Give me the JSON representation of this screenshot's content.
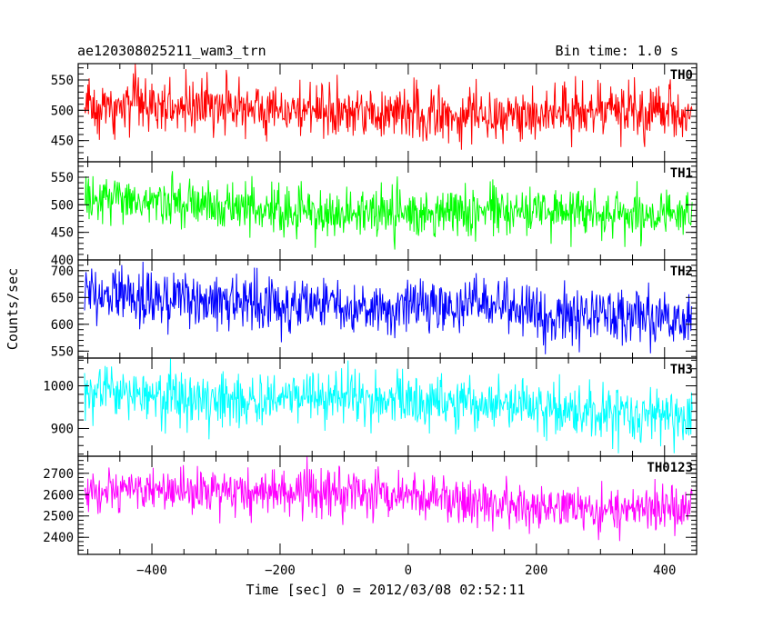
{
  "chart_data": {
    "type": "line",
    "title_left": "ae120308025211_wam3_trn",
    "title_right": "Bin time: 1.0 s",
    "xlabel": "Time [sec] 0 = 2012/03/08 02:52:11",
    "ylabel": "Counts/sec",
    "xlim": [
      -515,
      450
    ],
    "x_ticks": [
      -400,
      -200,
      0,
      200,
      400
    ],
    "x_start": -505,
    "x_end": 443,
    "x_step": 1.0,
    "grid": false,
    "panels": [
      {
        "name": "TH0",
        "color": "#ff0000",
        "ylim": [
          415,
          577
        ],
        "y_ticks": [
          450,
          500,
          550
        ],
        "mean_start": 505,
        "mean_end": 492,
        "noise": 22,
        "min": 435,
        "max": 577
      },
      {
        "name": "TH1",
        "color": "#00ff00",
        "ylim": [
          400,
          578
        ],
        "y_ticks": [
          400,
          450,
          500,
          550
        ],
        "mean_start": 500,
        "mean_end": 478,
        "noise": 22,
        "min": 405,
        "max": 575
      },
      {
        "name": "TH2",
        "color": "#0000ff",
        "ylim": [
          537,
          720
        ],
        "y_ticks": [
          550,
          600,
          650,
          700
        ],
        "mean_start": 655,
        "mean_end": 612,
        "noise": 25,
        "min": 540,
        "max": 720
      },
      {
        "name": "TH3",
        "color": "#00ffff",
        "ylim": [
          835,
          1065
        ],
        "y_ticks": [
          900,
          1000
        ],
        "mean_start": 990,
        "mean_end": 935,
        "noise": 32,
        "min": 842,
        "max": 1065
      },
      {
        "name": "TH0123",
        "color": "#ff00ff",
        "ylim": [
          2320,
          2780
        ],
        "y_ticks": [
          2400,
          2500,
          2600,
          2700
        ],
        "mean_start": 2640,
        "mean_end": 2530,
        "noise": 55,
        "min": 2330,
        "max": 2780
      }
    ]
  }
}
